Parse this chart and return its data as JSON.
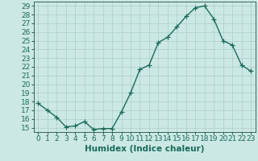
{
  "x": [
    0,
    1,
    2,
    3,
    4,
    5,
    6,
    7,
    8,
    9,
    10,
    11,
    12,
    13,
    14,
    15,
    16,
    17,
    18,
    19,
    20,
    21,
    22,
    23
  ],
  "y": [
    17.8,
    17.0,
    16.2,
    15.1,
    15.2,
    15.7,
    14.8,
    14.9,
    14.9,
    16.8,
    19.0,
    21.7,
    22.2,
    24.8,
    25.4,
    26.6,
    27.8,
    28.8,
    29.0,
    27.5,
    25.0,
    24.5,
    22.2,
    21.5
  ],
  "line_color": "#1a6b5a",
  "marker": "+",
  "marker_size": 4,
  "bg_color": "#cce8e5",
  "grid_color": "#aacfcc",
  "spine_color": "#336655",
  "xlabel": "Humidex (Indice chaleur)",
  "ylim": [
    14.5,
    29.5
  ],
  "xlim": [
    -0.5,
    23.5
  ],
  "yticks": [
    15,
    16,
    17,
    18,
    19,
    20,
    21,
    22,
    23,
    24,
    25,
    26,
    27,
    28,
    29
  ],
  "xticks": [
    0,
    1,
    2,
    3,
    4,
    5,
    6,
    7,
    8,
    9,
    10,
    11,
    12,
    13,
    14,
    15,
    16,
    17,
    18,
    19,
    20,
    21,
    22,
    23
  ],
  "xlabel_fontsize": 7.5,
  "tick_fontsize": 6.5,
  "linewidth": 1.0,
  "markeredgewidth": 0.9
}
